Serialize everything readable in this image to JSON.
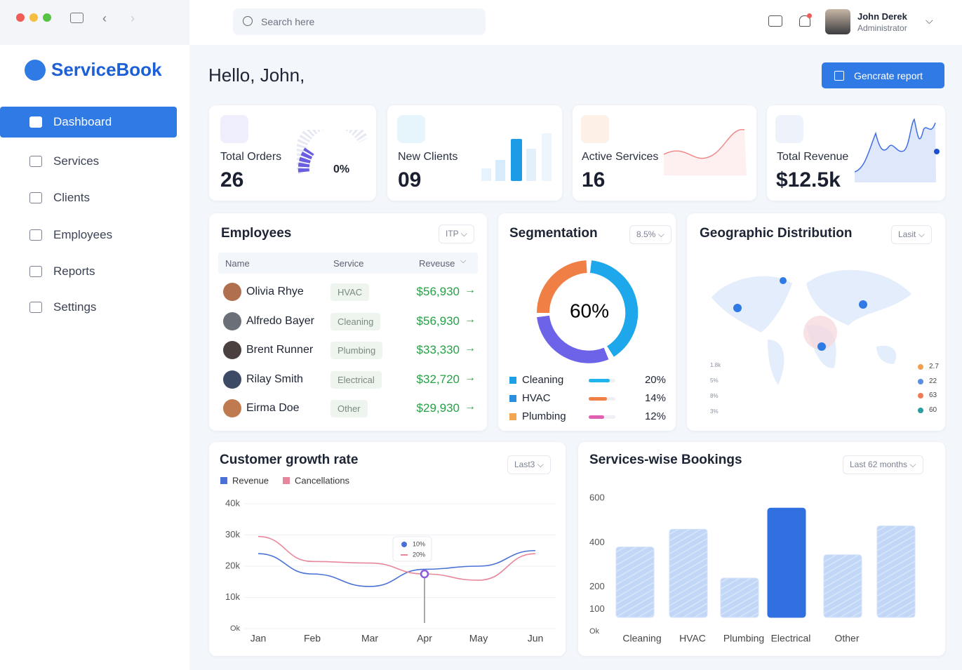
{
  "sidebar": {
    "brand": "ServiceBook",
    "nav": [
      "Dashboard",
      "Services",
      "Clients",
      "Employees",
      "Reports",
      "Settings"
    ]
  },
  "topbar": {
    "search_placeholder": "Search here",
    "user_name": "John Derek",
    "user_role": "Administrator"
  },
  "greeting": "Hello, John,",
  "action": "Gencrate report",
  "stats": [
    {
      "label": "Total Orders",
      "value": "26",
      "change": "0%"
    },
    {
      "label": "New Clients",
      "value": "09"
    },
    {
      "label": "Active Services",
      "value": "16"
    },
    {
      "label": "Total Revenue",
      "value": "$12.5k"
    }
  ],
  "employees": {
    "title": "Employees",
    "filter": "ITP",
    "columns": [
      "Name",
      "Service",
      "Reveuse"
    ],
    "rows": [
      [
        "Olivia Rhye",
        "HVAC",
        "$56,930"
      ],
      [
        "Alfredo Bayer",
        "Cleaning",
        "$56,930"
      ],
      [
        "Brent Runner",
        "Plumbing",
        "$33,330"
      ],
      [
        "Rilay Smith",
        "Electrical",
        "$32,720"
      ],
      [
        "Eirma Doe",
        "Other",
        "$29,930"
      ]
    ]
  },
  "segmentation": {
    "title": "Segmentation",
    "filter": "8.5%",
    "center": "60%",
    "legend": [
      {
        "name": "Cleaning",
        "value": "20%",
        "color": "#1ea0e6"
      },
      {
        "name": "HVAC",
        "value": "14%",
        "color": "#2a8fe0"
      },
      {
        "name": "Plumbing",
        "value": "12%",
        "color": "#f3a64f"
      }
    ]
  },
  "geo": {
    "title": "Geographic Distribution",
    "filter": "Lasit",
    "left_legend": [
      "1.8k",
      "5%",
      "8%",
      "3%"
    ],
    "right_legend": [
      "2.7",
      "22",
      "63",
      "60"
    ]
  },
  "chart_data": [
    {
      "type": "line",
      "title": "Customer growth rate",
      "filter": "Last3",
      "categories": [
        "Jan",
        "Feb",
        "Mar",
        "Apr",
        "May",
        "Jun"
      ],
      "series": [
        {
          "name": "Revenue",
          "color": "#4a72d6",
          "values": [
            24000,
            17500,
            13500,
            19000,
            20000,
            25000
          ]
        },
        {
          "name": "Cancellations",
          "color": "#e8879b",
          "values": [
            29500,
            21500,
            21000,
            17500,
            15500,
            24000
          ]
        }
      ],
      "ylim": [
        0,
        40000
      ],
      "yticks": [
        {
          "value": 0,
          "label": "Ok"
        },
        {
          "value": 10000,
          "label": "10k"
        },
        {
          "value": 20000,
          "label": "20k"
        },
        {
          "value": 30000,
          "label": "30k"
        },
        {
          "value": 40000,
          "label": "40k"
        }
      ],
      "grid": true,
      "annotations": [
        "10%",
        "20%"
      ]
    },
    {
      "type": "bar",
      "title": "Services-wise Bookings",
      "filter": "Last 62 months",
      "categories": [
        "Cleaning",
        "HVAC",
        "Plumbing",
        "Electrical",
        "Other",
        null
      ],
      "values": [
        380,
        460,
        240,
        555,
        345,
        475
      ],
      "colors": [
        "#bcd4f6",
        "#bcd4f6",
        "#bcd4f6",
        "#2f6fe0",
        "#bcd4f6",
        "#bcd4f6"
      ],
      "ylim": [
        0,
        600
      ],
      "yticks": [
        {
          "value": 0,
          "label": "Ok"
        },
        100,
        200,
        400,
        600
      ]
    }
  ]
}
